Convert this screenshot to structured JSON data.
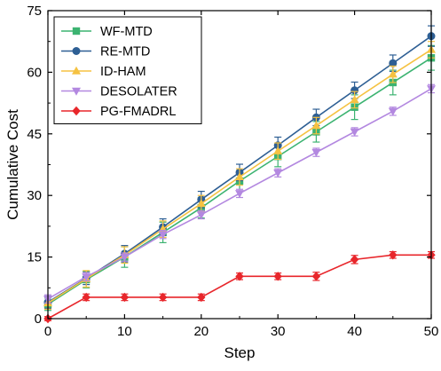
{
  "chart_data": {
    "type": "line",
    "title": "",
    "xlabel": "Step",
    "ylabel": "Cumulative Cost",
    "xlim": [
      0,
      50
    ],
    "ylim": [
      0,
      75
    ],
    "xticks": [
      0,
      10,
      20,
      30,
      40,
      50
    ],
    "yticks": [
      0,
      15,
      30,
      45,
      60,
      75
    ],
    "x": [
      0,
      5,
      10,
      15,
      20,
      25,
      30,
      35,
      40,
      45,
      50
    ],
    "grid": false,
    "legend_position": "top-left",
    "series": [
      {
        "name": "WF-MTD",
        "color": "#3cb371",
        "marker": "square",
        "values": [
          3.5,
          9.5,
          15.0,
          21.0,
          27.0,
          33.5,
          39.5,
          45.5,
          51.5,
          57.5,
          63.5
        ],
        "errors": [
          1.5,
          2.0,
          2.5,
          2.5,
          2.5,
          2.5,
          2.5,
          2.5,
          3.0,
          3.0,
          3.0
        ]
      },
      {
        "name": "RE-MTD",
        "color": "#2e5f94",
        "marker": "circle",
        "values": [
          4.0,
          9.8,
          15.8,
          22.3,
          29.0,
          35.6,
          42.2,
          49.0,
          55.6,
          62.2,
          68.8
        ],
        "errors": [
          1.5,
          1.5,
          2.0,
          2.0,
          2.0,
          2.0,
          2.0,
          2.0,
          2.0,
          2.0,
          2.5
        ]
      },
      {
        "name": "ID-HAM",
        "color": "#f5c242",
        "marker": "triangle-up",
        "values": [
          3.8,
          9.7,
          15.5,
          21.8,
          28.0,
          34.5,
          40.8,
          47.0,
          53.3,
          59.5,
          65.5
        ],
        "errors": [
          1.5,
          2.0,
          2.0,
          2.0,
          2.0,
          2.0,
          2.0,
          2.0,
          2.0,
          2.0,
          2.0
        ]
      },
      {
        "name": "DESOLATER",
        "color": "#b388e0",
        "marker": "triangle-down",
        "values": [
          4.8,
          10.2,
          15.0,
          20.5,
          25.3,
          30.5,
          35.5,
          40.5,
          45.5,
          50.5,
          56.0
        ],
        "errors": [
          1.0,
          1.0,
          1.0,
          1.0,
          1.0,
          1.0,
          1.0,
          1.0,
          1.0,
          1.0,
          1.0
        ]
      },
      {
        "name": "PG-FMADRL",
        "color": "#e8262b",
        "marker": "diamond",
        "values": [
          0.0,
          5.2,
          5.2,
          5.2,
          5.2,
          10.3,
          10.3,
          10.3,
          14.4,
          15.5,
          15.5
        ],
        "errors": [
          0.5,
          0.8,
          0.8,
          0.8,
          0.8,
          0.8,
          0.8,
          1.0,
          1.0,
          0.8,
          0.8
        ]
      }
    ]
  }
}
